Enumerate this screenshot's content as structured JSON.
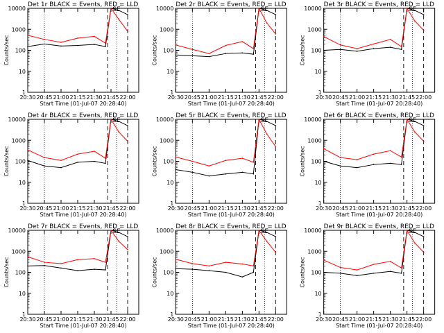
{
  "shared": {
    "xlabel": "Start Time (01-Jul-07 20:28:40)",
    "ylabel": "Counts/sec",
    "xtick_labels": [
      "20:30",
      "20:45",
      "21:00",
      "21:15",
      "21:30",
      "21:45",
      "22:00"
    ],
    "ytick_labels": [
      "1",
      "10",
      "100",
      "1000",
      "10000"
    ],
    "marker_text": "SE",
    "colors": {
      "events": "#000000",
      "lld": "#ff0000",
      "frame": "#000000",
      "background": "#ffffff"
    }
  },
  "chart_data": [
    {
      "type": "line",
      "title": "Det 1r BLACK = Events, RED = LLD",
      "x": [
        "20:30",
        "20:45",
        "21:00",
        "21:15",
        "21:30",
        "21:40",
        "21:45",
        "21:52",
        "22:00"
      ],
      "series": [
        {
          "label": "Events",
          "values": [
            150,
            200,
            160,
            170,
            190,
            150,
            10000,
            8000,
            5000
          ]
        },
        {
          "label": "LLD",
          "values": [
            520,
            330,
            240,
            380,
            460,
            220,
            10000,
            3000,
            800
          ]
        }
      ],
      "ylim": [
        1,
        10000
      ],
      "yscale": "log"
    },
    {
      "type": "line",
      "title": "Det 2r BLACK = Events, RED = LLD",
      "x": [
        "20:30",
        "20:45",
        "21:00",
        "21:15",
        "21:30",
        "21:40",
        "21:45",
        "21:52",
        "22:00"
      ],
      "series": [
        {
          "label": "Events",
          "values": [
            60,
            55,
            50,
            70,
            75,
            65,
            10000,
            8000,
            5000
          ]
        },
        {
          "label": "LLD",
          "values": [
            180,
            110,
            70,
            170,
            260,
            120,
            10000,
            2000,
            600
          ]
        }
      ],
      "ylim": [
        1,
        10000
      ],
      "yscale": "log"
    },
    {
      "type": "line",
      "title": "Det 3r BLACK = Events, RED = LLD",
      "x": [
        "20:30",
        "20:45",
        "21:00",
        "21:15",
        "21:30",
        "21:40",
        "21:45",
        "21:52",
        "22:00"
      ],
      "series": [
        {
          "label": "Events",
          "values": [
            100,
            110,
            90,
            120,
            140,
            110,
            10000,
            8000,
            5000
          ]
        },
        {
          "label": "LLD",
          "values": [
            450,
            180,
            120,
            200,
            330,
            150,
            10000,
            2500,
            900
          ]
        }
      ],
      "ylim": [
        1,
        10000
      ],
      "yscale": "log"
    },
    {
      "type": "line",
      "title": "Det 4r BLACK = Events, RED = LLD",
      "x": [
        "20:30",
        "20:45",
        "21:00",
        "21:15",
        "21:30",
        "21:40",
        "21:45",
        "21:52",
        "22:00"
      ],
      "series": [
        {
          "label": "Events",
          "values": [
            110,
            60,
            50,
            90,
            100,
            80,
            10000,
            8000,
            5000
          ]
        },
        {
          "label": "LLD",
          "values": [
            350,
            150,
            110,
            220,
            300,
            140,
            10000,
            2500,
            900
          ]
        }
      ],
      "ylim": [
        1,
        10000
      ],
      "yscale": "log"
    },
    {
      "type": "line",
      "title": "Det 5r BLACK = Events, RED = LLD",
      "x": [
        "20:30",
        "20:45",
        "21:00",
        "21:15",
        "21:30",
        "21:40",
        "21:45",
        "21:52",
        "22:00"
      ],
      "series": [
        {
          "label": "Events",
          "values": [
            40,
            30,
            20,
            25,
            30,
            25,
            10000,
            8000,
            5000
          ]
        },
        {
          "label": "LLD",
          "values": [
            160,
            100,
            60,
            110,
            140,
            90,
            10000,
            2000,
            500
          ]
        }
      ],
      "ylim": [
        1,
        10000
      ],
      "yscale": "log"
    },
    {
      "type": "line",
      "title": "Det 6r BLACK = Events, RED = LLD",
      "x": [
        "20:30",
        "20:45",
        "21:00",
        "21:15",
        "21:30",
        "21:40",
        "21:45",
        "21:52",
        "22:00"
      ],
      "series": [
        {
          "label": "Events",
          "values": [
            100,
            60,
            50,
            70,
            80,
            70,
            10000,
            8000,
            5000
          ]
        },
        {
          "label": "LLD",
          "values": [
            400,
            150,
            120,
            220,
            320,
            160,
            10000,
            2500,
            900
          ]
        }
      ],
      "ylim": [
        1,
        10000
      ],
      "yscale": "log"
    },
    {
      "type": "line",
      "title": "Det 7r BLACK = Events, RED = LLD",
      "x": [
        "20:30",
        "20:45",
        "21:00",
        "21:15",
        "21:30",
        "21:40",
        "21:45",
        "21:52",
        "22:00"
      ],
      "series": [
        {
          "label": "Events",
          "values": [
            200,
            210,
            160,
            120,
            140,
            130,
            10000,
            8000,
            5000
          ]
        },
        {
          "label": "LLD",
          "values": [
            550,
            300,
            260,
            400,
            450,
            300,
            10000,
            3000,
            1200
          ]
        }
      ],
      "ylim": [
        1,
        10000
      ],
      "yscale": "log"
    },
    {
      "type": "line",
      "title": "Det 8r BLACK = Events, RED = LLD",
      "x": [
        "20:30",
        "20:45",
        "21:00",
        "21:15",
        "21:30",
        "21:40",
        "21:45",
        "21:52",
        "22:00"
      ],
      "series": [
        {
          "label": "Events",
          "values": [
            150,
            140,
            120,
            100,
            60,
            100,
            10000,
            8000,
            5000
          ]
        },
        {
          "label": "LLD",
          "values": [
            420,
            260,
            200,
            300,
            250,
            200,
            10000,
            3000,
            900
          ]
        }
      ],
      "ylim": [
        1,
        10000
      ],
      "yscale": "log"
    },
    {
      "type": "line",
      "title": "Det 9r BLACK = Events, RED = LLD",
      "x": [
        "20:30",
        "20:45",
        "21:00",
        "21:15",
        "21:30",
        "21:40",
        "21:45",
        "21:52",
        "22:00"
      ],
      "series": [
        {
          "label": "Events",
          "values": [
            100,
            90,
            70,
            90,
            110,
            90,
            10000,
            8000,
            5000
          ]
        },
        {
          "label": "LLD",
          "values": [
            380,
            170,
            130,
            240,
            330,
            160,
            10000,
            2500,
            900
          ]
        }
      ],
      "ylim": [
        1,
        10000
      ],
      "yscale": "log"
    }
  ]
}
